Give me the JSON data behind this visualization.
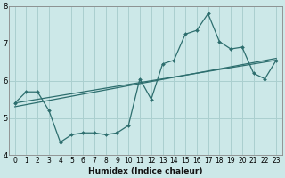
{
  "xlabel": "Humidex (Indice chaleur)",
  "bg_color": "#cce8e8",
  "line_color": "#2d6e6e",
  "grid_color": "#aacfcf",
  "x_data": [
    0,
    1,
    2,
    3,
    4,
    5,
    6,
    7,
    8,
    9,
    10,
    11,
    12,
    13,
    14,
    15,
    16,
    17,
    18,
    19,
    20,
    21,
    22,
    23
  ],
  "y_main": [
    5.4,
    5.7,
    5.7,
    5.2,
    4.35,
    4.55,
    4.6,
    4.6,
    4.55,
    4.6,
    4.8,
    6.05,
    5.5,
    6.45,
    6.55,
    7.25,
    7.35,
    7.8,
    7.05,
    6.85,
    6.9,
    6.2,
    6.05,
    6.55
  ],
  "trend1_x": [
    0,
    23
  ],
  "trend1_y": [
    5.4,
    6.55
  ],
  "trend2_x": [
    0,
    23
  ],
  "trend2_y": [
    5.3,
    6.6
  ],
  "ylim": [
    4.0,
    8.0
  ],
  "xlim": [
    -0.5,
    23.5
  ],
  "yticks": [
    4,
    5,
    6,
    7,
    8
  ],
  "xticks": [
    0,
    1,
    2,
    3,
    4,
    5,
    6,
    7,
    8,
    9,
    10,
    11,
    12,
    13,
    14,
    15,
    16,
    17,
    18,
    19,
    20,
    21,
    22,
    23
  ],
  "xlabel_fontsize": 6.5,
  "tick_fontsize": 5.5,
  "spine_color": "#888888"
}
